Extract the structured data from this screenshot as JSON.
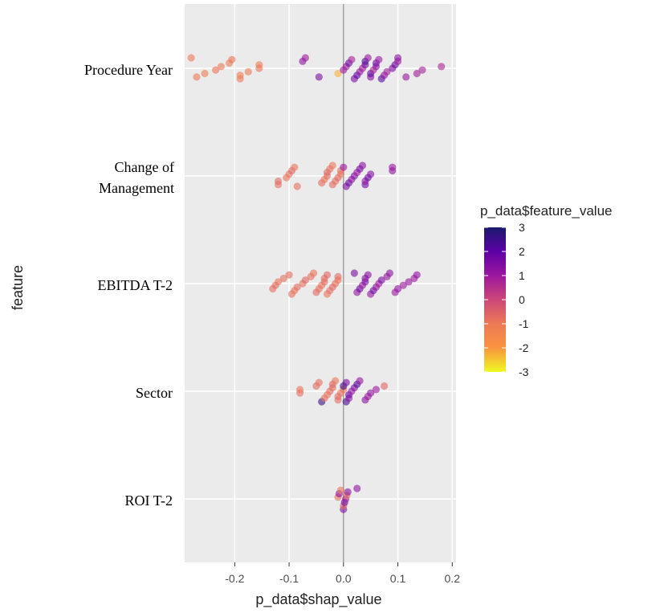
{
  "chart_data": {
    "type": "scatter",
    "xlabel": "p_data$shap_value",
    "ylabel": "feature",
    "xlim": [
      -0.292,
      0.207
    ],
    "xticks": [
      -0.2,
      -0.1,
      {
        "value": 0,
        "label": "0.0"
      },
      0.1,
      0.2
    ],
    "grid": true,
    "reference_line": 0,
    "categories": [
      "Procedure Year",
      "Change of Management",
      "EBITDA T-2",
      "Sector",
      "ROI T-2"
    ],
    "points": [
      {
        "shap": [
          -0.28,
          -0.27,
          -0.255,
          -0.235,
          -0.225,
          -0.21,
          -0.205,
          -0.19,
          -0.19,
          -0.175,
          -0.155,
          -0.155,
          -0.075,
          -0.07,
          -0.045,
          -0.01,
          0.0,
          0.005,
          0.01,
          0.015,
          0.02,
          0.025,
          0.03,
          0.035,
          0.04,
          0.04,
          0.045,
          0.05,
          0.05,
          0.055,
          0.06,
          0.06,
          0.065,
          0.07,
          0.075,
          0.08,
          0.09,
          0.095,
          0.1,
          0.1,
          0.115,
          0.135,
          0.145,
          0.18
        ],
        "feature_value": [
          -1.0,
          -1.0,
          -1.1,
          -0.9,
          -1.0,
          -1.1,
          -0.9,
          -1.0,
          -1.2,
          -1.0,
          -0.9,
          -1.1,
          1.2,
          1.0,
          1.5,
          -2.3,
          1.0,
          1.0,
          1.8,
          0.8,
          1.5,
          2.0,
          1.2,
          0.9,
          1.6,
          2.2,
          1.1,
          1.4,
          1.9,
          0.8,
          1.3,
          1.7,
          1.0,
          2.1,
          1.2,
          0.9,
          1.5,
          1.8,
          1.0,
          1.3,
          1.1,
          0.9,
          0.8,
          0.7
        ]
      },
      {
        "shap": [
          -0.12,
          -0.12,
          -0.105,
          -0.1,
          -0.095,
          -0.09,
          -0.085,
          -0.04,
          -0.035,
          -0.03,
          -0.03,
          -0.025,
          -0.02,
          -0.02,
          -0.015,
          -0.01,
          -0.005,
          -0.005,
          0.0,
          0.005,
          0.01,
          0.015,
          0.02,
          0.025,
          0.03,
          0.035,
          0.04,
          0.04,
          0.045,
          0.05,
          0.09,
          0.09
        ],
        "feature_value": [
          -0.8,
          -0.7,
          -0.9,
          -0.8,
          -0.6,
          -0.9,
          -0.8,
          -0.7,
          -0.9,
          -0.8,
          -0.6,
          -0.8,
          -0.9,
          -0.7,
          -0.8,
          -0.6,
          -0.9,
          -0.8,
          1.0,
          1.4,
          1.8,
          1.2,
          1.5,
          1.0,
          1.6,
          1.3,
          1.7,
          1.1,
          1.9,
          1.4,
          1.2,
          1.0
        ]
      },
      {
        "shap": [
          -0.13,
          -0.125,
          -0.12,
          -0.11,
          -0.1,
          -0.095,
          -0.09,
          -0.085,
          -0.075,
          -0.07,
          -0.06,
          -0.055,
          -0.05,
          -0.045,
          -0.04,
          -0.035,
          -0.035,
          -0.03,
          -0.03,
          -0.025,
          -0.02,
          -0.015,
          -0.01,
          -0.01,
          0.02,
          0.025,
          0.03,
          0.035,
          0.04,
          0.04,
          0.045,
          0.05,
          0.055,
          0.06,
          0.065,
          0.07,
          0.08,
          0.085,
          0.095,
          0.1,
          0.11,
          0.12,
          0.13,
          0.135
        ],
        "feature_value": [
          -0.8,
          -0.7,
          -0.9,
          -0.8,
          -0.7,
          -0.8,
          -0.9,
          -0.7,
          -0.8,
          -0.6,
          -0.8,
          -0.9,
          -0.7,
          -0.8,
          -0.9,
          -0.7,
          -0.8,
          -0.6,
          -0.9,
          -0.8,
          -0.7,
          -0.8,
          -0.9,
          -0.7,
          1.5,
          1.2,
          1.8,
          1.0,
          1.6,
          1.3,
          1.4,
          1.1,
          1.7,
          1.2,
          1.0,
          1.5,
          1.1,
          1.3,
          1.0,
          1.2,
          1.0,
          1.1,
          1.0,
          1.2
        ]
      },
      {
        "shap": [
          -0.08,
          -0.08,
          -0.05,
          -0.045,
          -0.04,
          -0.035,
          -0.03,
          -0.025,
          -0.02,
          -0.02,
          -0.015,
          -0.01,
          -0.01,
          -0.005,
          0.0,
          0.0,
          0.005,
          0.005,
          0.01,
          0.01,
          0.015,
          0.02,
          0.025,
          0.03,
          0.04,
          0.045,
          0.05,
          0.06,
          0.075
        ],
        "feature_value": [
          -0.8,
          -0.9,
          -0.7,
          -0.8,
          2.6,
          -0.8,
          -0.9,
          -0.7,
          -0.8,
          -0.6,
          -0.9,
          -0.8,
          -0.7,
          -0.8,
          -0.9,
          2.5,
          1.5,
          2.4,
          1.2,
          1.8,
          1.0,
          1.4,
          2.2,
          1.1,
          1.3,
          1.0,
          1.2,
          1.0,
          -0.6
        ]
      },
      {
        "shap": [
          -0.01,
          -0.008,
          -0.005,
          0.0,
          0.0,
          0.002,
          0.004,
          0.006,
          0.008,
          0.025
        ],
        "feature_value": [
          -0.8,
          1.2,
          -0.9,
          1.5,
          -0.7,
          1.8,
          1.0,
          -0.8,
          1.3,
          1.2
        ]
      }
    ],
    "colorbar": {
      "title": "p_data$feature_value",
      "clim": [
        -3,
        3
      ],
      "ticks": [
        -3,
        -2,
        -1,
        0,
        1,
        2,
        3
      ],
      "colors": [
        "#f0f921",
        "#f89540",
        "#ec7a57",
        "#cc4778",
        "#9c179e",
        "#5c01a6",
        "#1b1a6e"
      ]
    },
    "point_opacity": 0.6
  }
}
